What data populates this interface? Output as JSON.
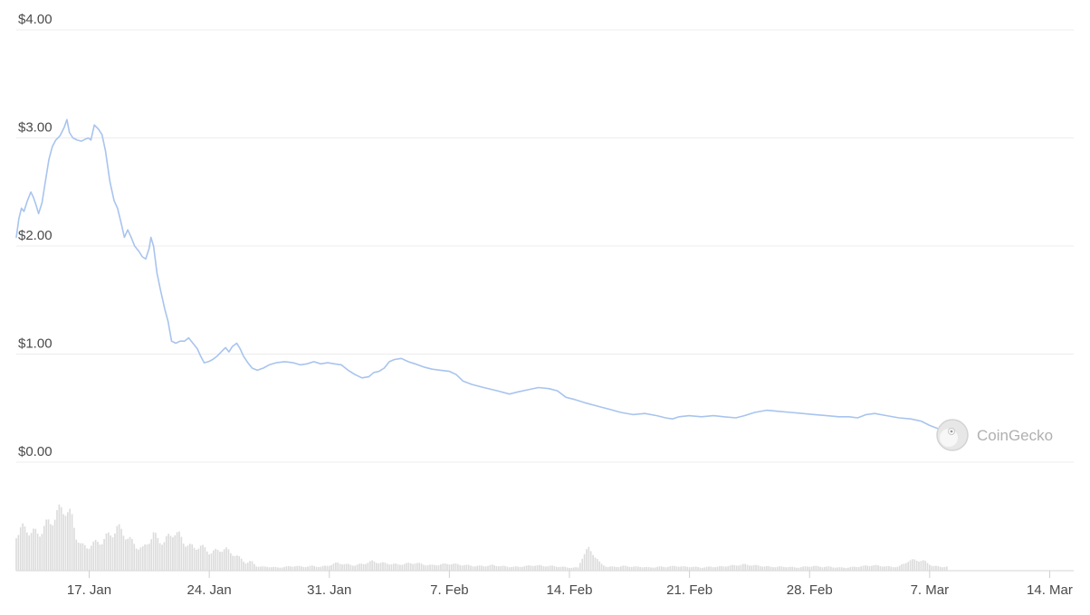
{
  "chart_data": [
    {
      "type": "line",
      "title": "",
      "xlabel": "",
      "ylabel": "",
      "ylim": [
        0,
        4
      ],
      "yticks": [
        "$0.00",
        "$1.00",
        "$2.00",
        "$3.00",
        "$4.00"
      ],
      "ytick_values": [
        0,
        1,
        2,
        3,
        4
      ],
      "xticks": [
        "17. Jan",
        "24. Jan",
        "31. Jan",
        "7. Feb",
        "14. Feb",
        "21. Feb",
        "28. Feb",
        "7. Mar",
        "14. Mar"
      ],
      "xtick_days": [
        17,
        24,
        31,
        38,
        45,
        52,
        59,
        66,
        73
      ],
      "xlim_days": [
        12.75,
        74.4
      ],
      "grid": true,
      "line_color": "#a8c4ee",
      "series": [
        {
          "name": "",
          "points": [
            [
              12.75,
              2.08
            ],
            [
              12.9,
              2.25
            ],
            [
              13.05,
              2.35
            ],
            [
              13.2,
              2.32
            ],
            [
              13.4,
              2.42
            ],
            [
              13.6,
              2.5
            ],
            [
              13.75,
              2.45
            ],
            [
              13.9,
              2.38
            ],
            [
              14.05,
              2.3
            ],
            [
              14.25,
              2.4
            ],
            [
              14.45,
              2.6
            ],
            [
              14.65,
              2.8
            ],
            [
              14.85,
              2.92
            ],
            [
              15.05,
              2.98
            ],
            [
              15.3,
              3.02
            ],
            [
              15.55,
              3.1
            ],
            [
              15.7,
              3.17
            ],
            [
              15.85,
              3.05
            ],
            [
              16.05,
              3.0
            ],
            [
              16.3,
              2.98
            ],
            [
              16.55,
              2.97
            ],
            [
              16.8,
              2.99
            ],
            [
              16.95,
              3.0
            ],
            [
              17.1,
              2.98
            ],
            [
              17.3,
              3.12
            ],
            [
              17.55,
              3.08
            ],
            [
              17.75,
              3.03
            ],
            [
              17.95,
              2.88
            ],
            [
              18.2,
              2.6
            ],
            [
              18.45,
              2.42
            ],
            [
              18.65,
              2.35
            ],
            [
              18.85,
              2.22
            ],
            [
              19.05,
              2.08
            ],
            [
              19.25,
              2.15
            ],
            [
              19.45,
              2.08
            ],
            [
              19.65,
              2.0
            ],
            [
              19.9,
              1.95
            ],
            [
              20.1,
              1.9
            ],
            [
              20.3,
              1.88
            ],
            [
              20.5,
              1.98
            ],
            [
              20.6,
              2.08
            ],
            [
              20.75,
              2.0
            ],
            [
              20.95,
              1.75
            ],
            [
              21.15,
              1.6
            ],
            [
              21.4,
              1.42
            ],
            [
              21.6,
              1.3
            ],
            [
              21.8,
              1.12
            ],
            [
              22.05,
              1.1
            ],
            [
              22.3,
              1.12
            ],
            [
              22.55,
              1.12
            ],
            [
              22.8,
              1.15
            ],
            [
              23.05,
              1.1
            ],
            [
              23.3,
              1.05
            ],
            [
              23.5,
              0.98
            ],
            [
              23.7,
              0.92
            ],
            [
              23.95,
              0.93
            ],
            [
              24.2,
              0.95
            ],
            [
              24.45,
              0.98
            ],
            [
              24.7,
              1.02
            ],
            [
              24.95,
              1.06
            ],
            [
              25.15,
              1.02
            ],
            [
              25.35,
              1.07
            ],
            [
              25.6,
              1.1
            ],
            [
              25.8,
              1.05
            ],
            [
              26.0,
              0.98
            ],
            [
              26.25,
              0.92
            ],
            [
              26.5,
              0.87
            ],
            [
              26.8,
              0.85
            ],
            [
              27.15,
              0.87
            ],
            [
              27.5,
              0.9
            ],
            [
              27.9,
              0.92
            ],
            [
              28.4,
              0.93
            ],
            [
              28.9,
              0.92
            ],
            [
              29.3,
              0.9
            ],
            [
              29.7,
              0.91
            ],
            [
              30.1,
              0.93
            ],
            [
              30.5,
              0.91
            ],
            [
              30.9,
              0.92
            ],
            [
              31.3,
              0.91
            ],
            [
              31.7,
              0.9
            ],
            [
              32.1,
              0.85
            ],
            [
              32.5,
              0.81
            ],
            [
              32.9,
              0.78
            ],
            [
              33.3,
              0.79
            ],
            [
              33.6,
              0.83
            ],
            [
              33.9,
              0.84
            ],
            [
              34.2,
              0.87
            ],
            [
              34.5,
              0.93
            ],
            [
              34.8,
              0.95
            ],
            [
              35.2,
              0.96
            ],
            [
              35.6,
              0.93
            ],
            [
              36.0,
              0.91
            ],
            [
              36.5,
              0.88
            ],
            [
              37.0,
              0.86
            ],
            [
              37.5,
              0.85
            ],
            [
              38.0,
              0.84
            ],
            [
              38.4,
              0.81
            ],
            [
              38.8,
              0.75
            ],
            [
              39.3,
              0.72
            ],
            [
              40.0,
              0.69
            ],
            [
              40.8,
              0.66
            ],
            [
              41.5,
              0.63
            ],
            [
              42.0,
              0.65
            ],
            [
              42.6,
              0.67
            ],
            [
              43.2,
              0.69
            ],
            [
              43.8,
              0.68
            ],
            [
              44.3,
              0.66
            ],
            [
              44.8,
              0.6
            ],
            [
              45.3,
              0.58
            ],
            [
              45.9,
              0.55
            ],
            [
              46.6,
              0.52
            ],
            [
              47.3,
              0.49
            ],
            [
              48.0,
              0.46
            ],
            [
              48.7,
              0.44
            ],
            [
              49.4,
              0.45
            ],
            [
              50.1,
              0.43
            ],
            [
              50.6,
              0.41
            ],
            [
              51.0,
              0.4
            ],
            [
              51.4,
              0.42
            ],
            [
              52.0,
              0.43
            ],
            [
              52.7,
              0.42
            ],
            [
              53.4,
              0.43
            ],
            [
              54.0,
              0.42
            ],
            [
              54.7,
              0.41
            ],
            [
              55.2,
              0.43
            ],
            [
              55.8,
              0.46
            ],
            [
              56.5,
              0.48
            ],
            [
              57.2,
              0.47
            ],
            [
              57.9,
              0.46
            ],
            [
              58.6,
              0.45
            ],
            [
              59.3,
              0.44
            ],
            [
              60.0,
              0.43
            ],
            [
              60.7,
              0.42
            ],
            [
              61.3,
              0.42
            ],
            [
              61.8,
              0.41
            ],
            [
              62.3,
              0.44
            ],
            [
              62.8,
              0.45
            ],
            [
              63.5,
              0.43
            ],
            [
              64.2,
              0.41
            ],
            [
              64.9,
              0.4
            ],
            [
              65.5,
              0.38
            ],
            [
              66.0,
              0.34
            ],
            [
              66.5,
              0.31
            ],
            [
              67.0,
              0.3
            ]
          ]
        }
      ]
    },
    {
      "type": "bar",
      "title": "",
      "xlabel": "",
      "ylabel": "",
      "bar_color": "#dcdcdc",
      "volume_relative": [
        [
          12.75,
          0.47
        ],
        [
          13.05,
          0.55
        ],
        [
          13.4,
          0.52
        ],
        [
          13.75,
          0.5
        ],
        [
          14.05,
          0.46
        ],
        [
          14.4,
          0.58
        ],
        [
          14.75,
          0.62
        ],
        [
          15.05,
          0.72
        ],
        [
          15.35,
          0.78
        ],
        [
          15.65,
          0.8
        ],
        [
          15.95,
          0.7
        ],
        [
          16.25,
          0.45
        ],
        [
          16.55,
          0.32
        ],
        [
          16.85,
          0.3
        ],
        [
          17.15,
          0.34
        ],
        [
          17.45,
          0.36
        ],
        [
          17.75,
          0.38
        ],
        [
          18.05,
          0.44
        ],
        [
          18.35,
          0.48
        ],
        [
          18.65,
          0.55
        ],
        [
          18.95,
          0.5
        ],
        [
          19.25,
          0.42
        ],
        [
          19.55,
          0.36
        ],
        [
          19.85,
          0.3
        ],
        [
          20.15,
          0.28
        ],
        [
          20.45,
          0.38
        ],
        [
          20.75,
          0.46
        ],
        [
          21.05,
          0.4
        ],
        [
          21.35,
          0.36
        ],
        [
          21.65,
          0.44
        ],
        [
          21.95,
          0.5
        ],
        [
          22.25,
          0.45
        ],
        [
          22.55,
          0.36
        ],
        [
          22.85,
          0.32
        ],
        [
          23.15,
          0.29
        ],
        [
          23.45,
          0.32
        ],
        [
          23.75,
          0.28
        ],
        [
          24.05,
          0.23
        ],
        [
          24.35,
          0.25
        ],
        [
          24.65,
          0.27
        ],
        [
          24.95,
          0.28
        ],
        [
          25.25,
          0.23
        ],
        [
          25.55,
          0.2
        ],
        [
          25.85,
          0.15
        ],
        [
          26.15,
          0.1
        ],
        [
          26.45,
          0.12
        ],
        [
          26.75,
          0.06
        ],
        [
          27.05,
          0.05
        ],
        [
          27.5,
          0.05
        ],
        [
          28.0,
          0.04
        ],
        [
          28.5,
          0.05
        ],
        [
          29.0,
          0.06
        ],
        [
          29.5,
          0.05
        ],
        [
          30.0,
          0.06
        ],
        [
          30.5,
          0.05
        ],
        [
          31.0,
          0.07
        ],
        [
          31.5,
          0.1
        ],
        [
          32.0,
          0.08
        ],
        [
          32.5,
          0.07
        ],
        [
          33.0,
          0.09
        ],
        [
          33.5,
          0.12
        ],
        [
          34.0,
          0.1
        ],
        [
          34.5,
          0.09
        ],
        [
          35.0,
          0.08
        ],
        [
          35.5,
          0.09
        ],
        [
          36.0,
          0.1
        ],
        [
          36.5,
          0.08
        ],
        [
          37.0,
          0.07
        ],
        [
          37.5,
          0.08
        ],
        [
          38.0,
          0.09
        ],
        [
          38.5,
          0.08
        ],
        [
          39.0,
          0.07
        ],
        [
          39.5,
          0.06
        ],
        [
          40.0,
          0.06
        ],
        [
          40.5,
          0.07
        ],
        [
          41.0,
          0.06
        ],
        [
          41.5,
          0.05
        ],
        [
          42.0,
          0.05
        ],
        [
          42.5,
          0.06
        ],
        [
          43.0,
          0.07
        ],
        [
          43.5,
          0.06
        ],
        [
          44.0,
          0.06
        ],
        [
          44.5,
          0.05
        ],
        [
          45.0,
          0.04
        ],
        [
          45.5,
          0.04
        ],
        [
          45.8,
          0.2
        ],
        [
          46.1,
          0.28
        ],
        [
          46.4,
          0.22
        ],
        [
          46.8,
          0.09
        ],
        [
          47.2,
          0.05
        ],
        [
          47.7,
          0.05
        ],
        [
          48.2,
          0.06
        ],
        [
          48.7,
          0.05
        ],
        [
          49.2,
          0.05
        ],
        [
          49.7,
          0.04
        ],
        [
          50.2,
          0.05
        ],
        [
          50.7,
          0.05
        ],
        [
          51.2,
          0.06
        ],
        [
          51.7,
          0.05
        ],
        [
          52.2,
          0.05
        ],
        [
          52.7,
          0.04
        ],
        [
          53.2,
          0.05
        ],
        [
          53.7,
          0.05
        ],
        [
          54.2,
          0.06
        ],
        [
          54.7,
          0.07
        ],
        [
          55.2,
          0.08
        ],
        [
          55.7,
          0.07
        ],
        [
          56.2,
          0.06
        ],
        [
          56.7,
          0.05
        ],
        [
          57.2,
          0.05
        ],
        [
          57.7,
          0.05
        ],
        [
          58.2,
          0.04
        ],
        [
          58.7,
          0.05
        ],
        [
          59.2,
          0.06
        ],
        [
          59.7,
          0.05
        ],
        [
          60.2,
          0.05
        ],
        [
          60.7,
          0.04
        ],
        [
          61.2,
          0.04
        ],
        [
          61.7,
          0.05
        ],
        [
          62.2,
          0.06
        ],
        [
          62.7,
          0.07
        ],
        [
          63.2,
          0.06
        ],
        [
          63.7,
          0.05
        ],
        [
          64.2,
          0.05
        ],
        [
          64.7,
          0.12
        ],
        [
          65.2,
          0.14
        ],
        [
          65.7,
          0.12
        ],
        [
          66.2,
          0.06
        ],
        [
          66.7,
          0.05
        ],
        [
          67.0,
          0.05
        ]
      ]
    }
  ],
  "watermark": {
    "brand": "CoinGecko"
  },
  "colors": {
    "grid": "#ececec",
    "tick_text": "#4a4a4a",
    "watermark_text": "#b0b0b0"
  }
}
